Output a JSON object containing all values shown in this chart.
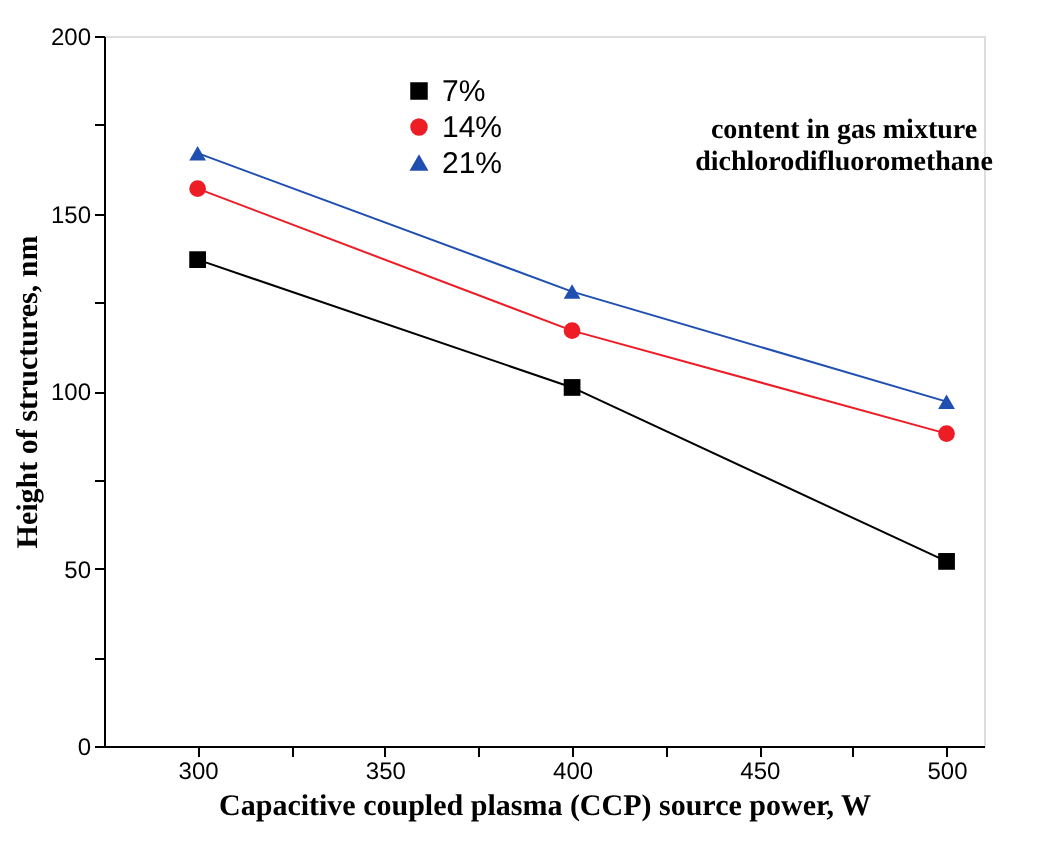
{
  "chart_data": {
    "type": "line",
    "xlabel": "Capacitive coupled plasma (CCP) source power, W",
    "ylabel": "Height of structures, nm",
    "x": [
      300,
      400,
      500
    ],
    "series": [
      {
        "name": "7%",
        "color": "#000000",
        "marker": "square",
        "values": [
          137,
          101,
          52
        ]
      },
      {
        "name": "14%",
        "color": "#ee1c25",
        "marker": "circle",
        "values": [
          157,
          117,
          88
        ]
      },
      {
        "name": "21%",
        "color": "#1f4fb0",
        "marker": "triangle",
        "values": [
          167,
          128,
          97
        ]
      }
    ],
    "xlim": [
      275,
      510
    ],
    "xticks": [
      300,
      {
        "value": 325,
        "label": null
      },
      350,
      {
        "value": 375,
        "label": null
      },
      400,
      {
        "value": 425,
        "label": null
      },
      450,
      {
        "value": 475,
        "label": null
      },
      500
    ],
    "ylim": [
      0,
      200
    ],
    "yticks": [
      0,
      {
        "value": 25,
        "label": null
      },
      50,
      {
        "value": 75,
        "label": null
      },
      100,
      {
        "value": 125,
        "label": null
      },
      150,
      {
        "value": 175,
        "label": null
      },
      200
    ],
    "annotations": [
      "content in gas mixture\ndichlorodifluoromethane"
    ],
    "legend": "top",
    "grid": false,
    "line_style": "solid"
  }
}
